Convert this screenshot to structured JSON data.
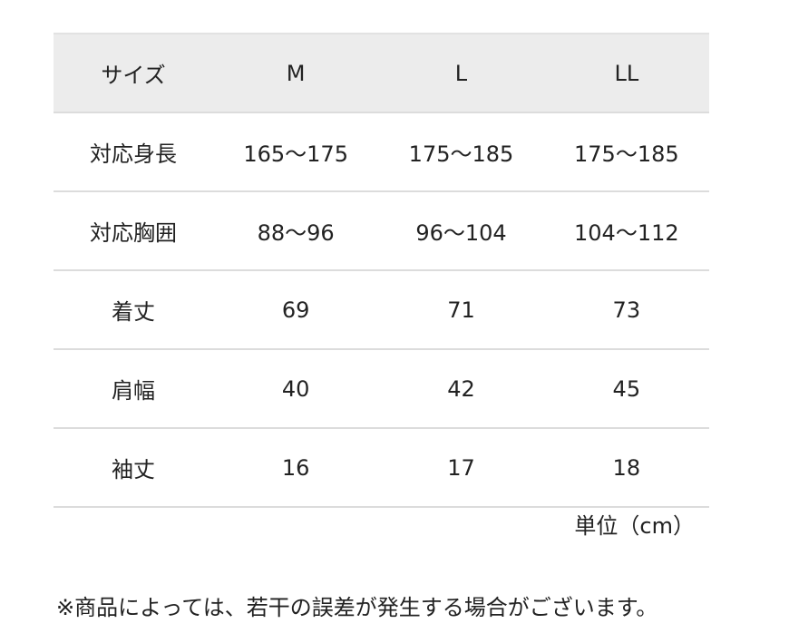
{
  "table": {
    "header": [
      "サイズ",
      "M",
      "L",
      "LL"
    ],
    "rows": [
      [
        "対応身長",
        "165〜175",
        "175〜185",
        "175〜185"
      ],
      [
        "対応胸囲",
        "88〜96",
        "96〜104",
        "104〜112"
      ],
      [
        "着丈",
        "69",
        "71",
        "73"
      ],
      [
        "肩幅",
        "40",
        "42",
        "45"
      ],
      [
        "袖丈",
        "16",
        "17",
        "18"
      ]
    ]
  },
  "unit_label": "単位（cm）",
  "note": "※商品によっては、若干の誤差が発生する場合がございます。",
  "colors": {
    "header_bg": "#ececec",
    "divider": "#dcdcdc",
    "text": "#222222"
  }
}
